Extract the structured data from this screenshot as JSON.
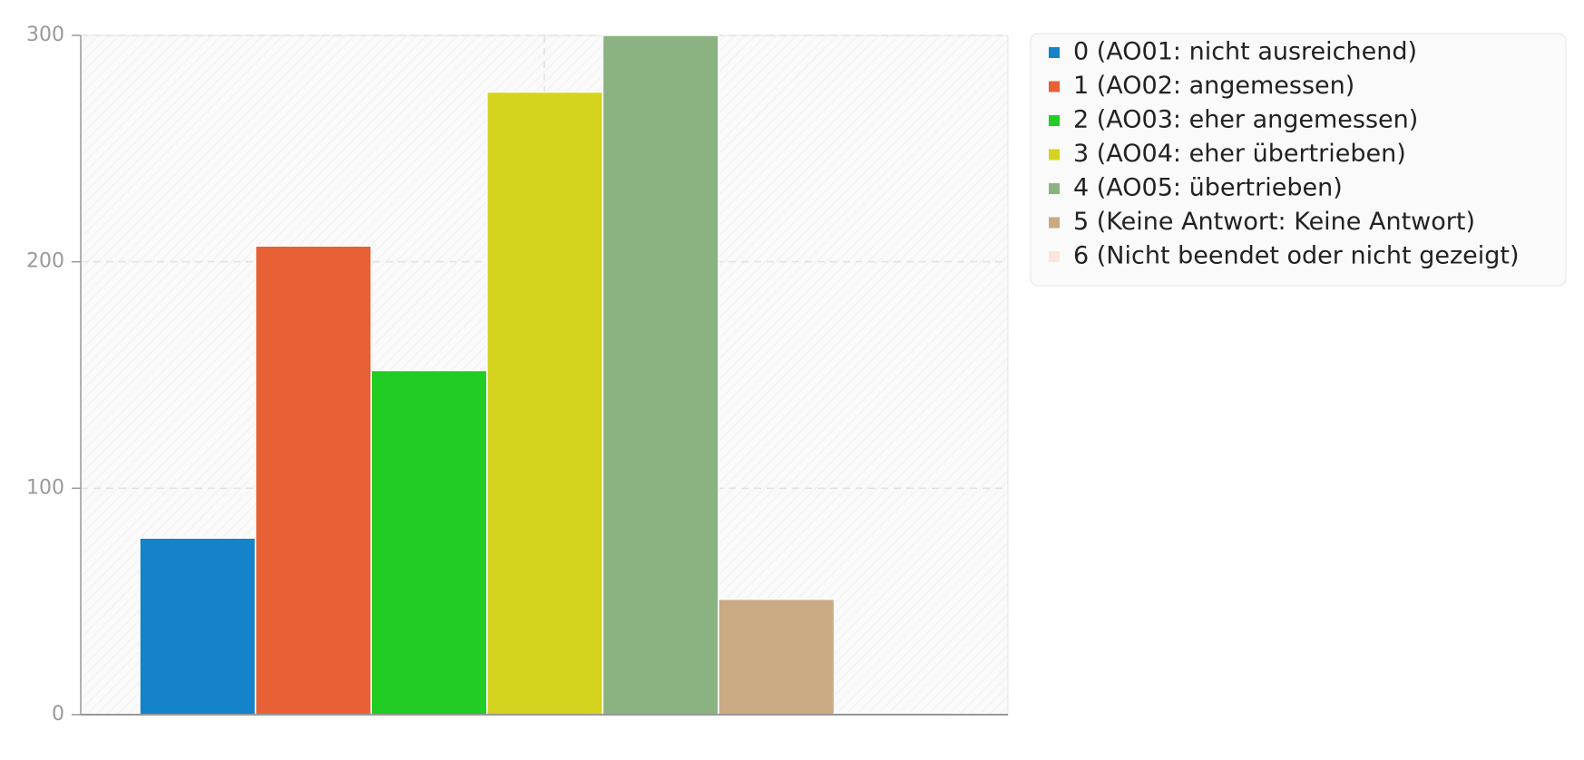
{
  "chart_data": {
    "type": "bar",
    "categories": [
      "0 (AO01: nicht ausreichend)",
      "1 (AO02: angemessen)",
      "2 (AO03: eher angemessen)",
      "3 (AO04: eher übertrieben)",
      "4 (AO05: übertrieben)",
      "5 (Keine Antwort: Keine Antwort)",
      "6 (Nicht beendet oder nicht gezeigt)"
    ],
    "values": [
      78,
      207,
      152,
      275,
      300,
      51,
      1
    ],
    "colors": [
      "#1483c9",
      "#e86035",
      "#21cc24",
      "#d4d41e",
      "#8ab381",
      "#c9aa83",
      "#fce5dc"
    ],
    "ylim": [
      0,
      300
    ],
    "yticks": [
      0,
      100,
      200,
      300
    ],
    "grid": true,
    "legend": "right"
  }
}
